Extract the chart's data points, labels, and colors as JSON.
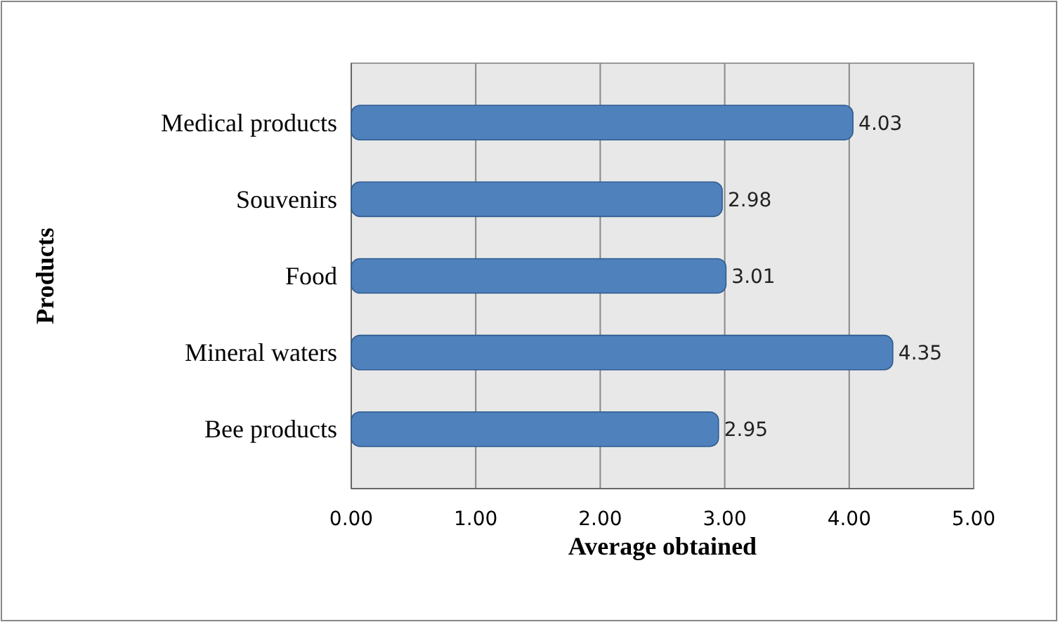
{
  "chart_data": {
    "type": "bar",
    "orientation": "horizontal",
    "xlabel": "Average obtained",
    "ylabel": "Products",
    "categories": [
      "Medical products",
      "Souvenirs",
      "Food",
      "Mineral waters",
      "Bee products"
    ],
    "values": [
      4.03,
      2.98,
      3.01,
      4.35,
      2.95
    ],
    "color": "#4f81bd",
    "xlim": [
      0,
      5
    ],
    "xticks": [
      {
        "value": 0,
        "label": "0.00"
      },
      {
        "value": 1,
        "label": "1.00"
      },
      {
        "value": 2,
        "label": "2.00"
      },
      {
        "value": 3,
        "label": "3.00"
      },
      {
        "value": 4,
        "label": "4.00"
      },
      {
        "value": 5,
        "label": "5.00"
      }
    ],
    "grid": "x",
    "data_labels": true
  }
}
